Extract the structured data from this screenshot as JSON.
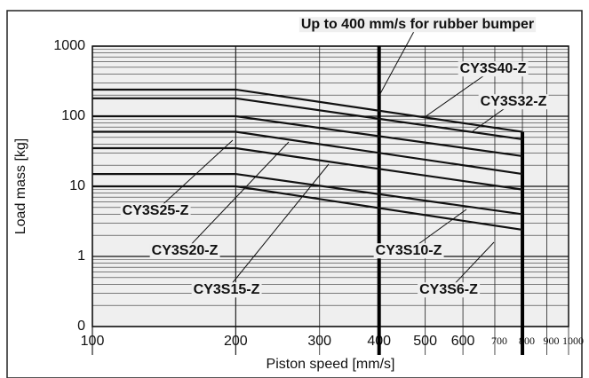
{
  "chart_data": {
    "type": "line",
    "log_x": true,
    "log_y": true,
    "grid": true,
    "x_label": "Piston speed [mm/s]",
    "y_label": "Load mass [kg]",
    "annotation": "Up to 400 mm/s for rubber bumper",
    "x": [
      100,
      200,
      800
    ],
    "series": [
      {
        "name": "CY3S40-Z",
        "color": "#111111",
        "values": [
          240,
          240,
          60
        ]
      },
      {
        "name": "CY3S32-Z",
        "color": "#111111",
        "values": [
          180,
          180,
          47
        ]
      },
      {
        "name": "CY3S25-Z",
        "color": "#111111",
        "values": [
          100,
          100,
          27
        ]
      },
      {
        "name": "CY3S20-Z",
        "color": "#111111",
        "values": [
          60,
          60,
          15
        ]
      },
      {
        "name": "CY3S15-Z",
        "color": "#111111",
        "values": [
          35,
          35,
          9
        ]
      },
      {
        "name": "CY3S10-Z",
        "color": "#111111",
        "values": [
          15,
          15,
          4
        ]
      },
      {
        "name": "CY3S6-Z",
        "color": "#111111",
        "values": [
          10,
          10,
          2.4
        ]
      }
    ],
    "limit_lines": [
      400,
      800
    ],
    "xlim": [
      100,
      1000
    ],
    "xticks": [
      100,
      200,
      300,
      400,
      500,
      600,
      700,
      800,
      900,
      1000
    ],
    "ylim": [
      0.1,
      1000
    ],
    "yticks": [
      1000,
      100,
      10,
      1,
      {
        "value": 0.1,
        "label": "0"
      }
    ]
  }
}
